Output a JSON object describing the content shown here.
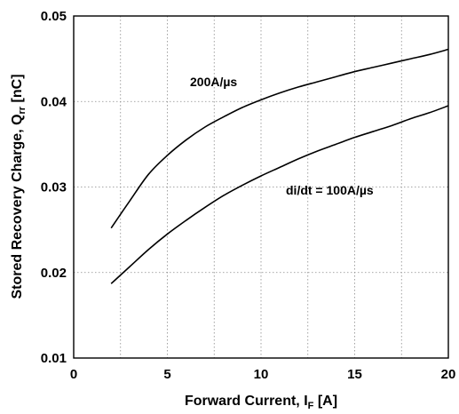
{
  "chart_data": {
    "type": "line",
    "xlabel": {
      "main": "Forward Current, I",
      "sub": "F",
      "unit": " [A]"
    },
    "ylabel": {
      "main": "Stored Recovery Charge, Q",
      "sub": "rr",
      "unit": " [nC]"
    },
    "xlim": [
      0,
      20
    ],
    "ylim": [
      0.01,
      0.05
    ],
    "xticks": [
      0,
      5,
      10,
      15,
      20
    ],
    "xtick_labels": [
      "0",
      "5",
      "10",
      "15",
      "20"
    ],
    "yticks": [
      0.01,
      0.02,
      0.03,
      0.04,
      0.05
    ],
    "ytick_labels": [
      "0.01",
      "0.02",
      "0.03",
      "0.04",
      "0.05"
    ],
    "grid": true,
    "series": [
      {
        "label": "200A/µs",
        "x": [
          2,
          3,
          4,
          5,
          6,
          7,
          8,
          9,
          10,
          11,
          12,
          13,
          14,
          15,
          16,
          17,
          18,
          19,
          20
        ],
        "y": [
          0.0252,
          0.0284,
          0.0315,
          0.0337,
          0.0355,
          0.037,
          0.0382,
          0.0393,
          0.0402,
          0.041,
          0.0417,
          0.0423,
          0.0429,
          0.0435,
          0.044,
          0.0445,
          0.045,
          0.0455,
          0.0461
        ]
      },
      {
        "label": "di/dt = 100A/µs",
        "x": [
          2,
          3,
          4,
          5,
          6,
          7,
          8,
          9,
          10,
          11,
          12,
          13,
          14,
          15,
          16,
          17,
          18,
          19,
          20
        ],
        "y": [
          0.0187,
          0.0207,
          0.0227,
          0.0245,
          0.0261,
          0.0276,
          0.029,
          0.0302,
          0.0313,
          0.0323,
          0.0333,
          0.0342,
          0.035,
          0.0358,
          0.0365,
          0.0372,
          0.038,
          0.0387,
          0.0395
        ]
      }
    ]
  }
}
